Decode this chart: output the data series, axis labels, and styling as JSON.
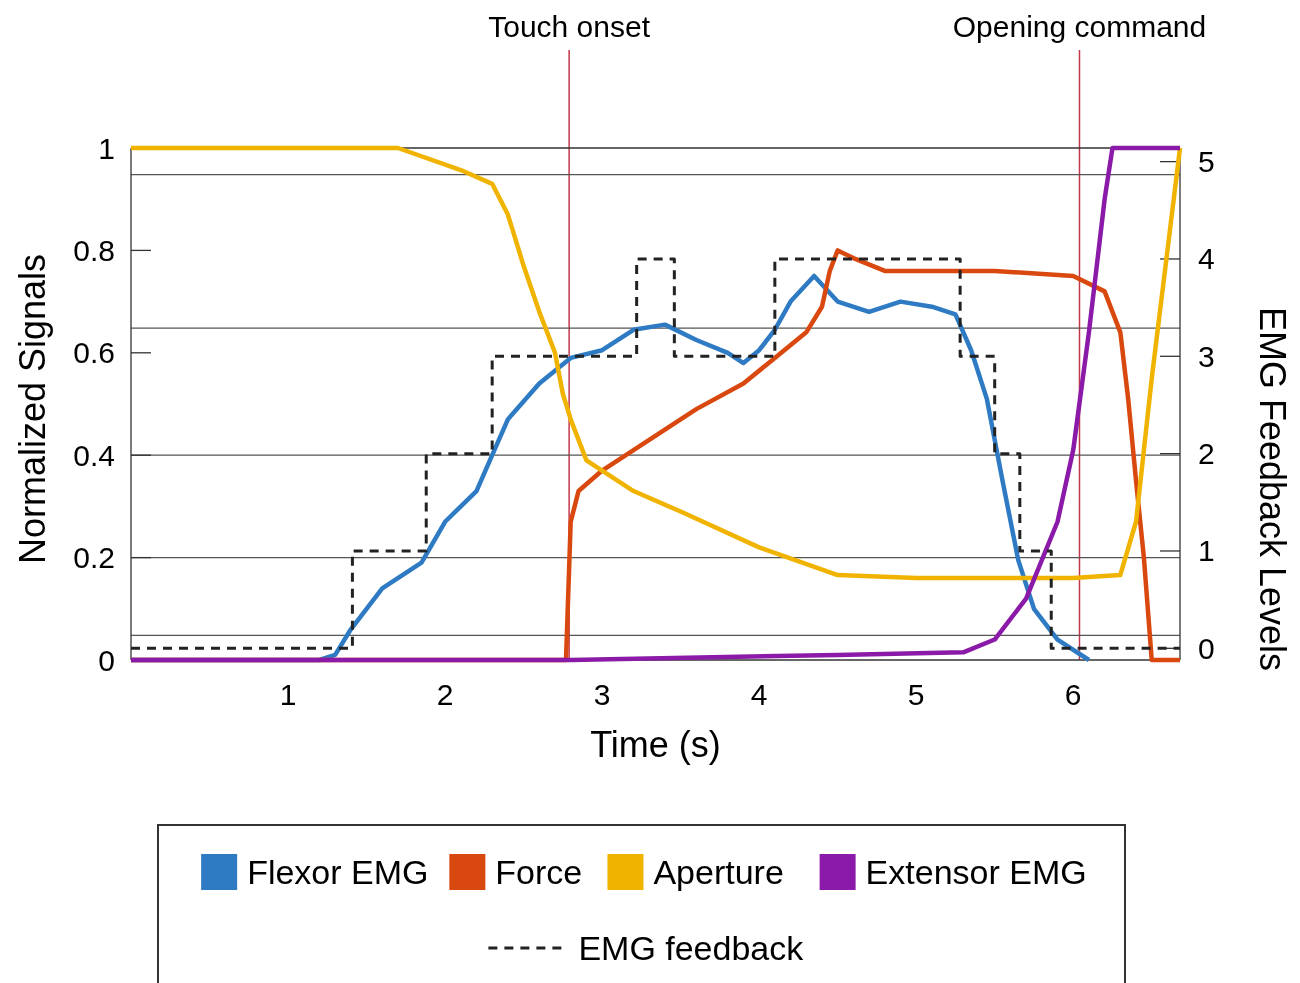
{
  "chart_data": {
    "type": "line",
    "xlabel": "Time (s)",
    "ylabel": "Normalized Signals",
    "y2label": "EMG Feedback Levels",
    "xlim": [
      0,
      6.68
    ],
    "xticks": [
      1,
      2,
      3,
      4,
      5,
      6
    ],
    "ylim": [
      0,
      1
    ],
    "yticks": [
      0,
      0.2,
      0.4,
      0.6,
      0.8,
      1
    ],
    "y2lim": [
      -0.12,
      5.14
    ],
    "y2ticks": [
      0,
      1,
      2,
      3,
      4,
      5
    ],
    "legend": "bottom",
    "line_style": "solid",
    "ref_lines": [
      {
        "axis": "x",
        "value": 2.79,
        "label": "Touch onset",
        "color": "#c0394a"
      },
      {
        "axis": "x",
        "value": 6.04,
        "label": "Opening command",
        "color": "#c0394a"
      },
      {
        "axis": "y",
        "value": 0.948,
        "color": "#555555"
      },
      {
        "axis": "y",
        "value": 0.648,
        "color": "#555555"
      },
      {
        "axis": "y",
        "value": 0.4,
        "color": "#555555"
      },
      {
        "axis": "y",
        "value": 0.2,
        "color": "#555555"
      },
      {
        "axis": "y",
        "value": 0.048,
        "color": "#555555"
      }
    ],
    "series": [
      {
        "name": "Flexor EMG",
        "color": "#2e7bc4",
        "x": [
          0,
          1.2,
          1.3,
          1.4,
          1.6,
          1.85,
          2.0,
          2.2,
          2.3,
          2.4,
          2.6,
          2.8,
          3.0,
          3.2,
          3.4,
          3.6,
          3.8,
          3.9,
          4.0,
          4.1,
          4.2,
          4.35,
          4.5,
          4.7,
          4.9,
          5.1,
          5.25,
          5.35,
          5.45,
          5.55,
          5.65,
          5.75,
          5.9,
          6.1
        ],
        "values": [
          0,
          0,
          0.01,
          0.06,
          0.14,
          0.19,
          0.27,
          0.33,
          0.4,
          0.47,
          0.54,
          0.59,
          0.605,
          0.645,
          0.655,
          0.625,
          0.6,
          0.58,
          0.605,
          0.645,
          0.7,
          0.75,
          0.7,
          0.68,
          0.7,
          0.69,
          0.675,
          0.605,
          0.51,
          0.35,
          0.195,
          0.1,
          0.04,
          0
        ]
      },
      {
        "name": "Force",
        "color": "#d9480f",
        "x": [
          0,
          2.77,
          2.8,
          2.85,
          3.0,
          3.3,
          3.6,
          3.9,
          4.1,
          4.3,
          4.4,
          4.45,
          4.5,
          4.6,
          4.8,
          5.5,
          6.0,
          6.2,
          6.3,
          6.35,
          6.4,
          6.45,
          6.5,
          6.68
        ],
        "values": [
          0,
          0,
          0.27,
          0.33,
          0.37,
          0.43,
          0.49,
          0.54,
          0.59,
          0.64,
          0.69,
          0.76,
          0.8,
          0.785,
          0.76,
          0.76,
          0.75,
          0.72,
          0.64,
          0.51,
          0.35,
          0.2,
          0,
          0
        ]
      },
      {
        "name": "Aperture",
        "color": "#f0b400",
        "x": [
          0,
          1.7,
          2.1,
          2.3,
          2.4,
          2.5,
          2.6,
          2.7,
          2.75,
          2.8,
          2.9,
          3.0,
          3.2,
          3.5,
          4.0,
          4.5,
          5.0,
          6.0,
          6.3,
          6.4,
          6.5,
          6.6,
          6.68
        ],
        "values": [
          1,
          1,
          0.957,
          0.93,
          0.87,
          0.77,
          0.68,
          0.6,
          0.52,
          0.47,
          0.39,
          0.37,
          0.33,
          0.29,
          0.22,
          0.166,
          0.16,
          0.16,
          0.166,
          0.27,
          0.55,
          0.8,
          1
        ]
      },
      {
        "name": "Extensor EMG",
        "color": "#8b1aa8",
        "x": [
          0,
          2.8,
          4.5,
          5.3,
          5.5,
          5.7,
          5.9,
          6.0,
          6.1,
          6.2,
          6.25,
          6.68
        ],
        "values": [
          0,
          0,
          0.01,
          0.015,
          0.04,
          0.12,
          0.27,
          0.41,
          0.64,
          0.9,
          1,
          1
        ]
      },
      {
        "name": "EMG feedback",
        "type": "step",
        "axis": "y2",
        "color": "#222222",
        "line_style": "dashed",
        "x": [
          0,
          1.41,
          1.88,
          2.3,
          3.22,
          3.46,
          4.1,
          5.28,
          5.5,
          5.66,
          5.86,
          6.68
        ],
        "values": [
          0,
          1,
          2,
          3,
          4,
          3,
          4,
          3,
          2,
          1,
          0,
          0
        ]
      }
    ]
  }
}
